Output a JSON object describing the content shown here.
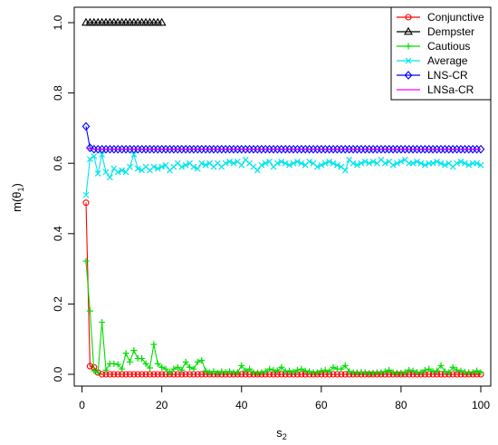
{
  "chart_data": {
    "type": "line",
    "title": "",
    "xlabel": "s",
    "xlabel_sub": "2",
    "ylabel": "m(θ",
    "ylabel_sub": "1",
    "ylabel_close": ")",
    "xlim": [
      1,
      100
    ],
    "ylim": [
      0,
      1.0
    ],
    "xticks": [
      0,
      20,
      40,
      60,
      80,
      100
    ],
    "yticks": [
      0.0,
      0.2,
      0.4,
      0.6,
      0.8,
      1.0
    ],
    "xtick_labels": [
      "0",
      "20",
      "40",
      "60",
      "80",
      "100"
    ],
    "ytick_labels": [
      "0.0",
      "0.2",
      "0.4",
      "0.6",
      "0.8",
      "1.0"
    ],
    "grid": false,
    "legend_position": "top-right",
    "series": [
      {
        "name": "Conjunctive",
        "color": "#ff0000",
        "marker": "circle",
        "x": [
          1,
          2,
          3,
          4,
          5,
          6,
          7,
          8,
          9,
          10,
          11,
          12,
          13,
          14,
          15,
          16,
          17,
          18,
          19,
          20,
          21,
          22,
          23,
          24,
          25,
          26,
          27,
          28,
          29,
          30,
          31,
          32,
          33,
          34,
          35,
          36,
          37,
          38,
          39,
          40,
          41,
          42,
          43,
          44,
          45,
          46,
          47,
          48,
          49,
          50,
          51,
          52,
          53,
          54,
          55,
          56,
          57,
          58,
          59,
          60,
          61,
          62,
          63,
          64,
          65,
          66,
          67,
          68,
          69,
          70,
          71,
          72,
          73,
          74,
          75,
          76,
          77,
          78,
          79,
          80,
          81,
          82,
          83,
          84,
          85,
          86,
          87,
          88,
          89,
          90,
          91,
          92,
          93,
          94,
          95,
          96,
          97,
          98,
          99,
          100
        ],
        "y": [
          0.488,
          0.023,
          0.02,
          0.005,
          0,
          0,
          0,
          0,
          0,
          0,
          0,
          0,
          0,
          0,
          0,
          0,
          0,
          0,
          0,
          0,
          0,
          0,
          0,
          0,
          0,
          0,
          0,
          0,
          0,
          0,
          0,
          0,
          0,
          0,
          0,
          0,
          0,
          0,
          0,
          0,
          0,
          0,
          0,
          0,
          0,
          0,
          0,
          0,
          0,
          0,
          0,
          0,
          0,
          0,
          0,
          0,
          0,
          0,
          0,
          0,
          0,
          0,
          0,
          0,
          0,
          0,
          0,
          0,
          0,
          0,
          0,
          0,
          0,
          0,
          0,
          0,
          0,
          0,
          0,
          0,
          0,
          0,
          0,
          0,
          0,
          0,
          0,
          0,
          0,
          0,
          0,
          0,
          0,
          0,
          0,
          0,
          0,
          0,
          0,
          0
        ]
      },
      {
        "name": "Dempster",
        "color": "#000000",
        "marker": "triangle",
        "x": [
          1,
          2,
          3,
          4,
          5,
          6,
          7,
          8,
          9,
          10,
          11,
          12,
          13,
          14,
          15,
          16,
          17,
          18,
          19,
          20
        ],
        "y": [
          1,
          1,
          1,
          1,
          1,
          1,
          1,
          1,
          1,
          1,
          1,
          1,
          1,
          1,
          1,
          1,
          1,
          1,
          1,
          1
        ]
      },
      {
        "name": "Cautious",
        "color": "#00dd00",
        "marker": "plus",
        "x": [
          1,
          2,
          3,
          4,
          5,
          6,
          7,
          8,
          9,
          10,
          11,
          12,
          13,
          14,
          15,
          16,
          17,
          18,
          19,
          20,
          21,
          22,
          23,
          24,
          25,
          26,
          27,
          28,
          29,
          30,
          31,
          32,
          33,
          34,
          35,
          36,
          37,
          38,
          39,
          40,
          41,
          42,
          43,
          44,
          45,
          46,
          47,
          48,
          49,
          50,
          51,
          52,
          53,
          54,
          55,
          56,
          57,
          58,
          59,
          60,
          61,
          62,
          63,
          64,
          65,
          66,
          67,
          68,
          69,
          70,
          71,
          72,
          73,
          74,
          75,
          76,
          77,
          78,
          79,
          80,
          81,
          82,
          83,
          84,
          85,
          86,
          87,
          88,
          89,
          90,
          91,
          92,
          93,
          94,
          95,
          96,
          97,
          98,
          99,
          100
        ],
        "y": [
          0.322,
          0.18,
          0.01,
          0.005,
          0.148,
          0.012,
          0.03,
          0.03,
          0.028,
          0.015,
          0.06,
          0.035,
          0.068,
          0.045,
          0.045,
          0.03,
          0.018,
          0.085,
          0.03,
          0.02,
          0.015,
          0.005,
          0.015,
          0.02,
          0.012,
          0.035,
          0.02,
          0.015,
          0.035,
          0.04,
          0.01,
          0.005,
          0.008,
          0.004,
          0.008,
          0.006,
          0.008,
          0.005,
          0.005,
          0.025,
          0.01,
          0.015,
          0.005,
          0.004,
          0.005,
          0.008,
          0.015,
          0.012,
          0.01,
          0.02,
          0.008,
          0.01,
          0.006,
          0.012,
          0.015,
          0.01,
          0.008,
          0.005,
          0.005,
          0.01,
          0.012,
          0.008,
          0.02,
          0.015,
          0.015,
          0.025,
          0.008,
          0.005,
          0.005,
          0.006,
          0.005,
          0.003,
          0.004,
          0.005,
          0.005,
          0.008,
          0.012,
          0.005,
          0.004,
          0.004,
          0.005,
          0.012,
          0.01,
          0.006,
          0.005,
          0.012,
          0.015,
          0.008,
          0.01,
          0.025,
          0.008,
          0.005,
          0.02,
          0.012,
          0.01,
          0.006,
          0.005,
          0.005,
          0.01,
          0.005
        ]
      },
      {
        "name": "Average",
        "color": "#00e5ee",
        "marker": "cross",
        "x": [
          1,
          2,
          3,
          4,
          5,
          6,
          7,
          8,
          9,
          10,
          11,
          12,
          13,
          14,
          15,
          16,
          17,
          18,
          19,
          20,
          21,
          22,
          23,
          24,
          25,
          26,
          27,
          28,
          29,
          30,
          31,
          32,
          33,
          34,
          35,
          36,
          37,
          38,
          39,
          40,
          41,
          42,
          43,
          44,
          45,
          46,
          47,
          48,
          49,
          50,
          51,
          52,
          53,
          54,
          55,
          56,
          57,
          58,
          59,
          60,
          61,
          62,
          63,
          64,
          65,
          66,
          67,
          68,
          69,
          70,
          71,
          72,
          73,
          74,
          75,
          76,
          77,
          78,
          79,
          80,
          81,
          82,
          83,
          84,
          85,
          86,
          87,
          88,
          89,
          90,
          91,
          92,
          93,
          94,
          95,
          96,
          97,
          98,
          99,
          100
        ],
        "y": [
          0.51,
          0.612,
          0.62,
          0.571,
          0.625,
          0.575,
          0.56,
          0.585,
          0.575,
          0.58,
          0.575,
          0.59,
          0.625,
          0.585,
          0.58,
          0.59,
          0.58,
          0.59,
          0.585,
          0.59,
          0.595,
          0.58,
          0.59,
          0.6,
          0.59,
          0.595,
          0.6,
          0.59,
          0.585,
          0.6,
          0.595,
          0.6,
          0.59,
          0.6,
          0.59,
          0.6,
          0.605,
          0.6,
          0.605,
          0.595,
          0.61,
          0.6,
          0.59,
          0.58,
          0.595,
          0.6,
          0.605,
          0.59,
          0.6,
          0.605,
          0.6,
          0.595,
          0.6,
          0.605,
          0.6,
          0.595,
          0.605,
          0.6,
          0.59,
          0.595,
          0.6,
          0.605,
          0.6,
          0.595,
          0.59,
          0.58,
          0.61,
          0.6,
          0.595,
          0.6,
          0.605,
          0.6,
          0.605,
          0.6,
          0.61,
          0.6,
          0.605,
          0.595,
          0.6,
          0.605,
          0.61,
          0.6,
          0.6,
          0.605,
          0.6,
          0.595,
          0.6,
          0.6,
          0.605,
          0.6,
          0.595,
          0.6,
          0.59,
          0.6,
          0.605,
          0.6,
          0.595,
          0.6,
          0.6,
          0.595
        ]
      },
      {
        "name": "LNS-CR",
        "color": "#0000ff",
        "marker": "diamond",
        "x": [
          1,
          2,
          3,
          4,
          5,
          6,
          7,
          8,
          9,
          10,
          11,
          12,
          13,
          14,
          15,
          16,
          17,
          18,
          19,
          20,
          21,
          22,
          23,
          24,
          25,
          26,
          27,
          28,
          29,
          30,
          31,
          32,
          33,
          34,
          35,
          36,
          37,
          38,
          39,
          40,
          41,
          42,
          43,
          44,
          45,
          46,
          47,
          48,
          49,
          50,
          51,
          52,
          53,
          54,
          55,
          56,
          57,
          58,
          59,
          60,
          61,
          62,
          63,
          64,
          65,
          66,
          67,
          68,
          69,
          70,
          71,
          72,
          73,
          74,
          75,
          76,
          77,
          78,
          79,
          80,
          81,
          82,
          83,
          84,
          85,
          86,
          87,
          88,
          89,
          90,
          91,
          92,
          93,
          94,
          95,
          96,
          97,
          98,
          99,
          100
        ],
        "y": [
          0.705,
          0.644,
          0.64,
          0.64,
          0.64,
          0.64,
          0.64,
          0.64,
          0.64,
          0.64,
          0.64,
          0.64,
          0.64,
          0.64,
          0.64,
          0.64,
          0.64,
          0.64,
          0.64,
          0.64,
          0.64,
          0.64,
          0.64,
          0.64,
          0.64,
          0.64,
          0.64,
          0.64,
          0.64,
          0.64,
          0.64,
          0.64,
          0.64,
          0.64,
          0.64,
          0.64,
          0.64,
          0.64,
          0.64,
          0.64,
          0.64,
          0.64,
          0.64,
          0.64,
          0.64,
          0.64,
          0.64,
          0.64,
          0.64,
          0.64,
          0.64,
          0.64,
          0.64,
          0.64,
          0.64,
          0.64,
          0.64,
          0.64,
          0.64,
          0.64,
          0.64,
          0.64,
          0.64,
          0.64,
          0.64,
          0.64,
          0.64,
          0.64,
          0.64,
          0.64,
          0.64,
          0.64,
          0.64,
          0.64,
          0.64,
          0.64,
          0.64,
          0.64,
          0.64,
          0.64,
          0.64,
          0.64,
          0.64,
          0.64,
          0.64,
          0.64,
          0.64,
          0.64,
          0.64,
          0.64,
          0.64,
          0.64,
          0.64,
          0.64,
          0.64,
          0.64,
          0.64,
          0.64,
          0.64,
          0.64
        ]
      },
      {
        "name": "LNSa-CR",
        "color": "#ff00ff",
        "marker": "none",
        "x": [
          1,
          2,
          3,
          100
        ],
        "y": [
          0.645,
          0.641,
          0.64,
          0.64
        ]
      }
    ]
  }
}
